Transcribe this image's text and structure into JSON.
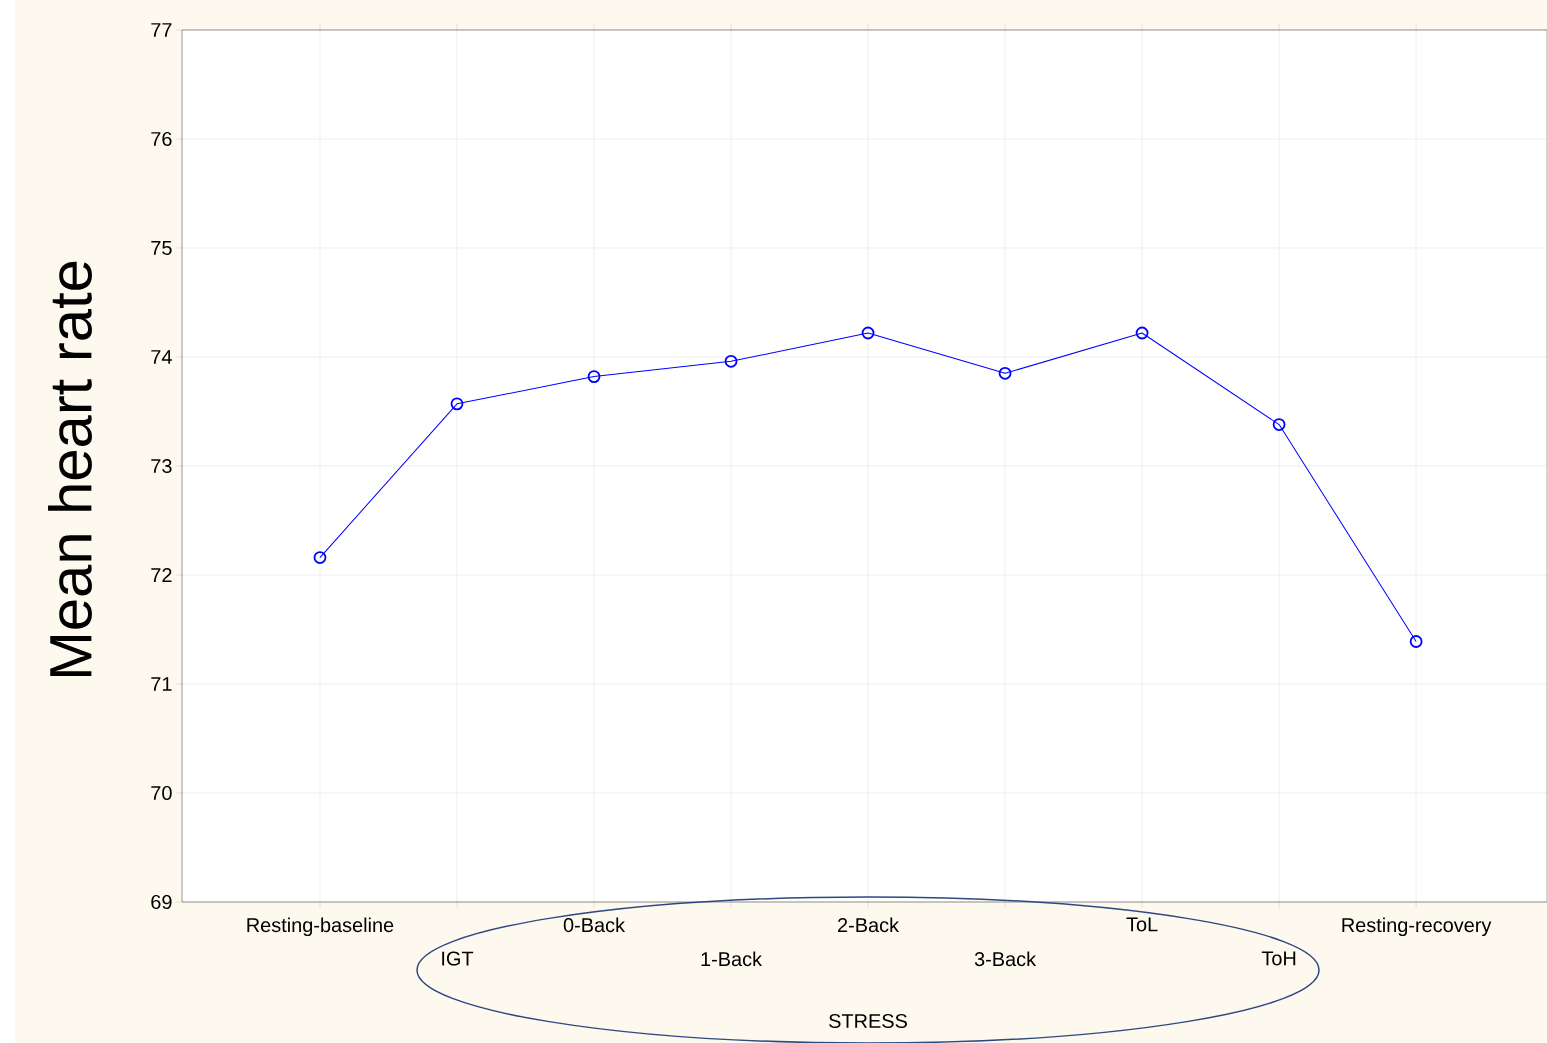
{
  "chart_data": {
    "type": "line",
    "xlabel": "STRESS",
    "ylabel": "Mean heart rate",
    "categories": [
      "Resting-baseline",
      "IGT",
      "0-Back",
      "1-Back",
      "2-Back",
      "3-Back",
      "ToL",
      "ToH",
      "Resting-recovery"
    ],
    "series": [
      {
        "color": "#0000ff",
        "values": [
          72.16,
          73.57,
          73.82,
          73.96,
          74.22,
          73.85,
          74.22,
          73.38,
          71.39
        ]
      }
    ],
    "ylim": [
      69,
      77
    ],
    "yticks": [
      69,
      70,
      71,
      72,
      73,
      74,
      75,
      76,
      77
    ],
    "grid": true,
    "marker": "circle"
  }
}
